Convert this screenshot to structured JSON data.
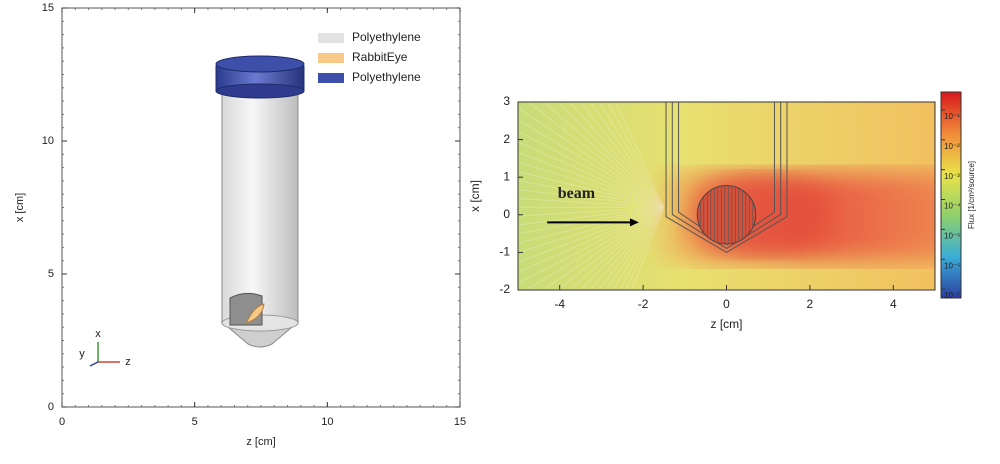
{
  "chart_data": [
    {
      "type": "geometry",
      "xlabel": "z [cm]",
      "ylabel": "x [cm]",
      "xlim": [
        0,
        15
      ],
      "ylim": [
        0,
        15
      ],
      "xticks": [
        0,
        5,
        10,
        15
      ],
      "yticks": [
        0,
        5,
        10,
        15
      ],
      "series": [
        {
          "name": "Polyethylene",
          "color": "#e2e2e2"
        },
        {
          "name": "RabbitEye",
          "color": "#f9c98a"
        },
        {
          "name": "Polyethylene",
          "color": "#3d4fa8"
        }
      ],
      "annotations": [
        "x",
        "y",
        "z"
      ]
    },
    {
      "type": "heatmap",
      "xlabel": "z [cm]",
      "ylabel": "x [cm]",
      "xlim": [
        -5,
        5
      ],
      "ylim": [
        -2,
        3
      ],
      "xticks": [
        -4,
        -2,
        0,
        2,
        4
      ],
      "yticks": [
        -2,
        -1,
        0,
        1,
        2,
        3
      ],
      "annotations": [
        "beam"
      ],
      "colorbar_label": "Flux [1/cm²/source]",
      "colorbar_log": true,
      "clim": [
        5e-08,
        0.4
      ],
      "colorbar_ticks": [
        {
          "value": 0.1,
          "label": "10⁻¹"
        },
        {
          "value": 0.01,
          "label": "10⁻²"
        },
        {
          "value": 0.001,
          "label": "10⁻³"
        },
        {
          "value": 0.0001,
          "label": "10⁻⁴"
        },
        {
          "value": 1e-05,
          "label": "10⁻⁵"
        },
        {
          "value": 1e-06,
          "label": "10⁻⁶"
        },
        {
          "value": 1e-07,
          "label": "10⁻⁷"
        }
      ]
    }
  ]
}
